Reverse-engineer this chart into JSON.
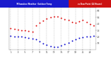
{
  "title_left": "Milwaukee Weather  Outdoor Temp",
  "title_right": "vs Dew Point (24 Hours)",
  "title_bg_blue": "#1a1acc",
  "title_bg_red": "#cc1111",
  "title_text_color": "#ffffff",
  "bg_color": "#ffffff",
  "plot_bg": "#ffffff",
  "grid_color": "#999999",
  "temp_color": "#dd0000",
  "dew_color": "#0000cc",
  "ylim": [
    0,
    65
  ],
  "xlim": [
    0.5,
    24.5
  ],
  "xticks": [
    1,
    3,
    5,
    7,
    9,
    11,
    13,
    15,
    17,
    19,
    21,
    23
  ],
  "xtick_labels": [
    "1",
    "3",
    "5",
    "7",
    "9",
    "11",
    "13",
    "15",
    "17",
    "19",
    "21",
    "23"
  ],
  "temp_x": [
    1,
    2,
    3,
    4,
    5,
    6,
    7,
    8,
    9,
    10,
    11,
    12,
    13,
    14,
    15,
    16,
    17,
    18,
    19,
    20,
    21,
    22,
    23,
    24
  ],
  "temp_y": [
    33,
    32,
    31,
    30,
    30,
    29,
    28,
    38,
    42,
    45,
    48,
    50,
    51,
    51,
    49,
    47,
    46,
    43,
    42,
    44,
    46,
    43,
    40,
    38
  ],
  "dew_x": [
    1,
    2,
    3,
    4,
    5,
    6,
    7,
    8,
    9,
    10,
    11,
    12,
    13,
    14,
    15,
    16,
    17,
    18,
    19,
    20,
    21,
    22,
    23,
    24
  ],
  "dew_y": [
    22,
    21,
    20,
    20,
    19,
    18,
    17,
    16,
    13,
    10,
    8,
    6,
    5,
    5,
    7,
    9,
    11,
    14,
    16,
    18,
    19,
    20,
    21,
    22
  ],
  "yticks": [
    10,
    20,
    30,
    40,
    50,
    60
  ],
  "ytick_labels": [
    "10",
    "20",
    "30",
    "40",
    "50",
    "60"
  ],
  "dot_size": 2.0,
  "title_split": 0.62
}
